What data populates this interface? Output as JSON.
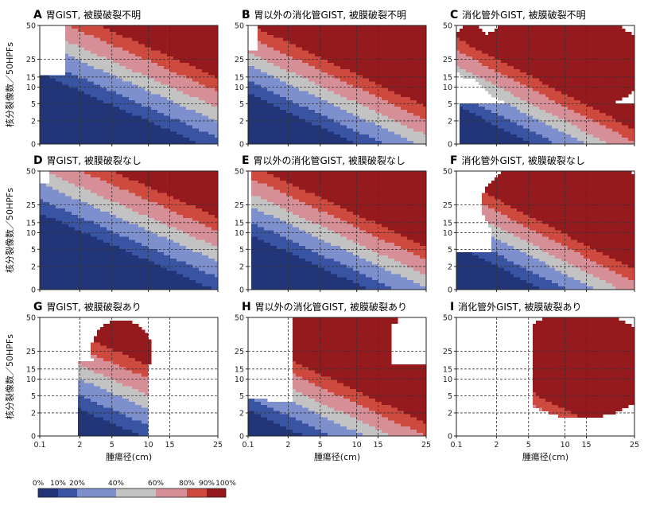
{
  "figure": {
    "xlabel": "腫瘍径(cm)",
    "ylabel": "核分裂像数／50HPFs",
    "x_ticks": [
      "0.1",
      "2",
      "5",
      "10",
      "15",
      "25"
    ],
    "y_ticks": [
      "0",
      "2",
      "5",
      "10",
      "15",
      "25",
      "50"
    ],
    "legend": {
      "labels": [
        "0%",
        "10%",
        "20%",
        "40%",
        "60%",
        "80%",
        "90%",
        "100%"
      ],
      "colors": [
        "#223578",
        "#3a54a4",
        "#7d8fcc",
        "#c3c3c3",
        "#d68f97",
        "#ce4a3f",
        "#951a1d"
      ]
    }
  },
  "chart_data": [
    {
      "letter": "A",
      "title": "胃GIST, 被膜破裂不明",
      "site": "stomach",
      "rupture": "unknown",
      "type": "heatmap",
      "xlim": [
        0.1,
        25
      ],
      "ylim": [
        0,
        50
      ]
    },
    {
      "letter": "B",
      "title": "胃以外の消化管GIST, 被膜破裂不明",
      "site": "other-gi",
      "rupture": "unknown",
      "type": "heatmap",
      "xlim": [
        0.1,
        25
      ],
      "ylim": [
        0,
        50
      ]
    },
    {
      "letter": "C",
      "title": "消化管外GIST, 被膜破裂不明",
      "site": "extra-gi",
      "rupture": "unknown",
      "type": "heatmap",
      "xlim": [
        0.1,
        25
      ],
      "ylim": [
        0,
        50
      ]
    },
    {
      "letter": "D",
      "title": "胃GIST, 被膜破裂なし",
      "site": "stomach",
      "rupture": "no",
      "type": "heatmap",
      "xlim": [
        0.1,
        25
      ],
      "ylim": [
        0,
        50
      ]
    },
    {
      "letter": "E",
      "title": "胃以外の消化管GIST, 被膜破裂なし",
      "site": "other-gi",
      "rupture": "no",
      "type": "heatmap",
      "xlim": [
        0.1,
        25
      ],
      "ylim": [
        0,
        50
      ]
    },
    {
      "letter": "F",
      "title": "消化管外GIST, 被膜破裂なし",
      "site": "extra-gi",
      "rupture": "no",
      "type": "heatmap",
      "xlim": [
        0.1,
        25
      ],
      "ylim": [
        0,
        50
      ]
    },
    {
      "letter": "G",
      "title": "胃GIST, 被膜破裂あり",
      "site": "stomach",
      "rupture": "yes",
      "type": "heatmap",
      "xlim": [
        0.1,
        25
      ],
      "ylim": [
        0,
        50
      ]
    },
    {
      "letter": "H",
      "title": "胃以外の消化管GIST, 被膜破裂あり",
      "site": "other-gi",
      "rupture": "yes",
      "type": "heatmap",
      "xlim": [
        0.1,
        25
      ],
      "ylim": [
        0,
        50
      ]
    },
    {
      "letter": "I",
      "title": "消化管外GIST, 被膜破裂あり",
      "site": "extra-gi",
      "rupture": "yes",
      "type": "heatmap",
      "xlim": [
        0.1,
        25
      ],
      "ylim": [
        0,
        50
      ]
    }
  ]
}
